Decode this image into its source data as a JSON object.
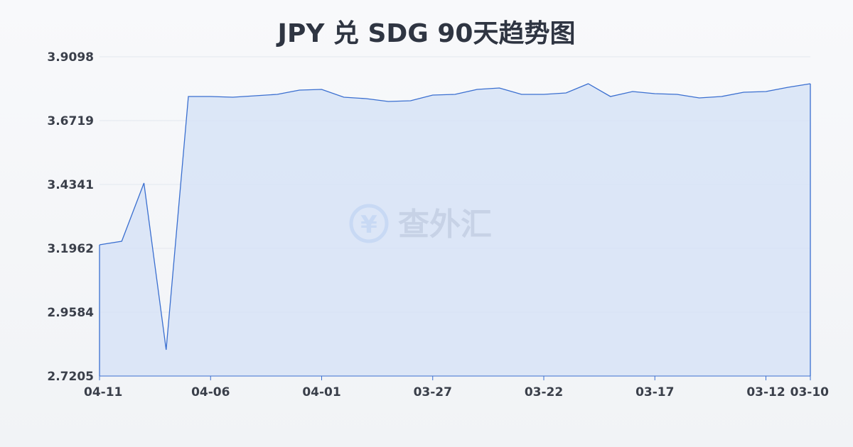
{
  "chart_data": {
    "type": "area",
    "title": "JPY 兑 SDG 90天趋势图",
    "watermark": "查外汇",
    "xlabel": "",
    "ylabel": "",
    "ylim": [
      2.7205,
      3.9098
    ],
    "yticks": [
      "3.9098",
      "3.6719",
      "3.4341",
      "3.1962",
      "2.9584",
      "2.7205"
    ],
    "xticks": [
      "04-11",
      "04-06",
      "04-01",
      "03-27",
      "03-22",
      "03-17",
      "03-12",
      "03-10"
    ],
    "grid": true,
    "line_color": "#3a6fd0",
    "fill_color": "#d6e2f6",
    "x": [
      "04-11",
      "04-10",
      "04-09",
      "04-08",
      "04-07",
      "04-06",
      "04-05",
      "04-04",
      "04-03",
      "04-02",
      "04-01",
      "03-31",
      "03-30",
      "03-29",
      "03-28",
      "03-27",
      "03-26",
      "03-25",
      "03-24",
      "03-23",
      "03-22",
      "03-21",
      "03-20",
      "03-19",
      "03-18",
      "03-17",
      "03-16",
      "03-15",
      "03-14",
      "03-13",
      "03-12",
      "03-11",
      "03-10"
    ],
    "values": [
      3.2094,
      3.2226,
      3.4394,
      2.8183,
      3.7618,
      3.7618,
      3.7592,
      3.7644,
      3.7697,
      3.7856,
      3.7882,
      3.7592,
      3.7539,
      3.7433,
      3.7459,
      3.767,
      3.7697,
      3.7882,
      3.7935,
      3.7697,
      3.7697,
      3.775,
      3.8094,
      3.7618,
      3.7803,
      3.7724,
      3.7697,
      3.7565,
      3.7618,
      3.7776,
      3.7803,
      3.7962,
      3.8094
    ]
  }
}
